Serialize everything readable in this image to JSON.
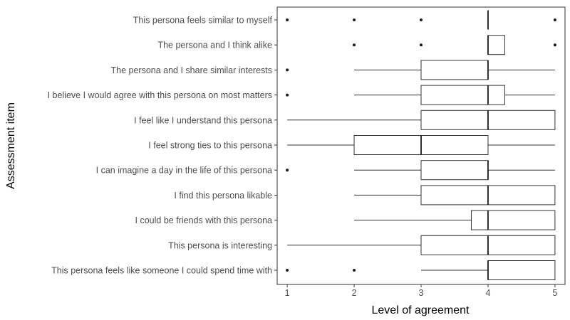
{
  "chart_data": {
    "type": "boxplot",
    "orientation": "horizontal",
    "xlabel": "Level of agreement",
    "ylabel": "Assessment item",
    "xlim": [
      0.85,
      5.15
    ],
    "x_ticks": [
      1,
      2,
      3,
      4,
      5
    ],
    "grid": false,
    "items": [
      {
        "label": "This persona feels similar to myself",
        "whisker_low": 4,
        "q1": 4,
        "median": 4,
        "q3": 4,
        "whisker_high": 4,
        "outliers": [
          1,
          2,
          3,
          5
        ]
      },
      {
        "label": "The persona and I think alike",
        "whisker_low": 4,
        "q1": 4,
        "median": 4,
        "q3": 4.25,
        "whisker_high": 4.25,
        "outliers": [
          2,
          3,
          5
        ]
      },
      {
        "label": "The persona and I share similar interests",
        "whisker_low": 2,
        "q1": 3,
        "median": 4,
        "q3": 4,
        "whisker_high": 5,
        "outliers": [
          1
        ]
      },
      {
        "label": "I believe I would agree with this persona on most matters",
        "whisker_low": 2,
        "q1": 3,
        "median": 4,
        "q3": 4.25,
        "whisker_high": 5,
        "outliers": [
          1
        ]
      },
      {
        "label": "I feel like I understand this persona",
        "whisker_low": 1,
        "q1": 3,
        "median": 4,
        "q3": 5,
        "whisker_high": 5,
        "outliers": []
      },
      {
        "label": "I feel strong ties to this persona",
        "whisker_low": 1,
        "q1": 2,
        "median": 3,
        "q3": 4,
        "whisker_high": 5,
        "outliers": []
      },
      {
        "label": "I can imagine a day in the life of this persona",
        "whisker_low": 2,
        "q1": 3,
        "median": 4,
        "q3": 4,
        "whisker_high": 5,
        "outliers": [
          1
        ]
      },
      {
        "label": "I find this persona likable",
        "whisker_low": 2,
        "q1": 3,
        "median": 4,
        "q3": 5,
        "whisker_high": 5,
        "outliers": []
      },
      {
        "label": "I could be friends with this persona",
        "whisker_low": 2,
        "q1": 3.75,
        "median": 4,
        "q3": 5,
        "whisker_high": 5,
        "outliers": []
      },
      {
        "label": "This persona is interesting",
        "whisker_low": 1,
        "q1": 3,
        "median": 4,
        "q3": 5,
        "whisker_high": 5,
        "outliers": []
      },
      {
        "label": "This persona feels like someone I could spend time with",
        "whisker_low": 3,
        "q1": 4,
        "median": 4,
        "q3": 5,
        "whisker_high": 5,
        "outliers": [
          1,
          2
        ]
      }
    ]
  }
}
